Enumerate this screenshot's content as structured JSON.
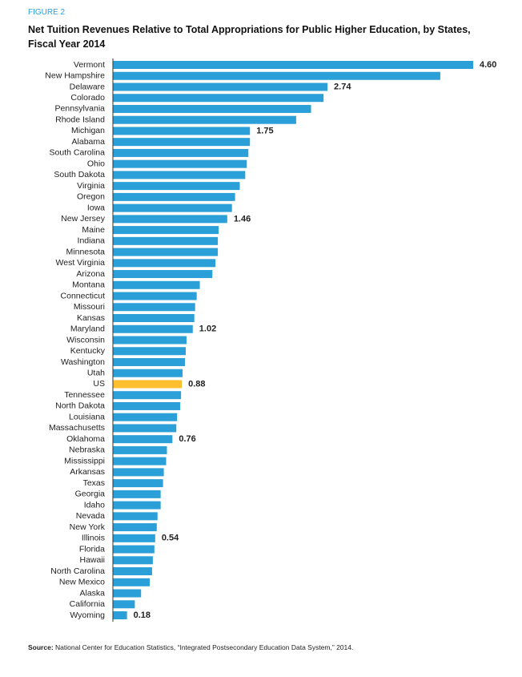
{
  "figure_label": "FIGURE 2",
  "chart_data": {
    "type": "bar",
    "orientation": "horizontal",
    "title": "Net Tuition Revenues Relative to Total Appropriations for Public Higher Education, by States, Fiscal Year 2014",
    "categories": [
      "Vermont",
      "New Hampshire",
      "Delaware",
      "Colorado",
      "Pennsylvania",
      "Rhode Island",
      "Michigan",
      "Alabama",
      "South Carolina",
      "Ohio",
      "South Dakota",
      "Virginia",
      "Oregon",
      "Iowa",
      "New Jersey",
      "Maine",
      "Indiana",
      "Minnesota",
      "West Virginia",
      "Arizona",
      "Montana",
      "Connecticut",
      "Missouri",
      "Kansas",
      "Maryland",
      "Wisconsin",
      "Kentucky",
      "Washington",
      "Utah",
      "US",
      "Tennessee",
      "North Dakota",
      "Louisiana",
      "Massachusetts",
      "Oklahoma",
      "Nebraska",
      "Mississippi",
      "Arkansas",
      "Texas",
      "Georgia",
      "Idaho",
      "Nevada",
      "New York",
      "Illinois",
      "Florida",
      "Hawaii",
      "North Carolina",
      "New Mexico",
      "Alaska",
      "California",
      "Wyoming"
    ],
    "values": [
      4.6,
      4.18,
      2.74,
      2.69,
      2.53,
      2.34,
      1.75,
      1.75,
      1.73,
      1.71,
      1.69,
      1.62,
      1.56,
      1.52,
      1.46,
      1.35,
      1.34,
      1.34,
      1.31,
      1.27,
      1.11,
      1.07,
      1.05,
      1.04,
      1.02,
      0.94,
      0.93,
      0.92,
      0.89,
      0.88,
      0.87,
      0.86,
      0.82,
      0.81,
      0.76,
      0.69,
      0.68,
      0.65,
      0.64,
      0.61,
      0.61,
      0.57,
      0.56,
      0.54,
      0.53,
      0.51,
      0.5,
      0.47,
      0.36,
      0.28,
      0.18
    ],
    "value_labels": [
      "4.60",
      null,
      "2.74",
      null,
      null,
      null,
      "1.75",
      null,
      null,
      null,
      null,
      null,
      null,
      null,
      "1.46",
      null,
      null,
      null,
      null,
      null,
      null,
      null,
      null,
      null,
      "1.02",
      null,
      null,
      null,
      null,
      "0.88",
      null,
      null,
      null,
      null,
      "0.76",
      null,
      null,
      null,
      null,
      null,
      null,
      null,
      null,
      "0.54",
      null,
      null,
      null,
      null,
      null,
      null,
      "0.18"
    ],
    "color": "#2a9fd8",
    "highlight": {
      "category": "US",
      "color": "#fdbf2d"
    }
  },
  "source_label": "Source:",
  "source_text": "National Center for Education Statistics, “Integrated Postsecondary Education Data System,” 2014."
}
